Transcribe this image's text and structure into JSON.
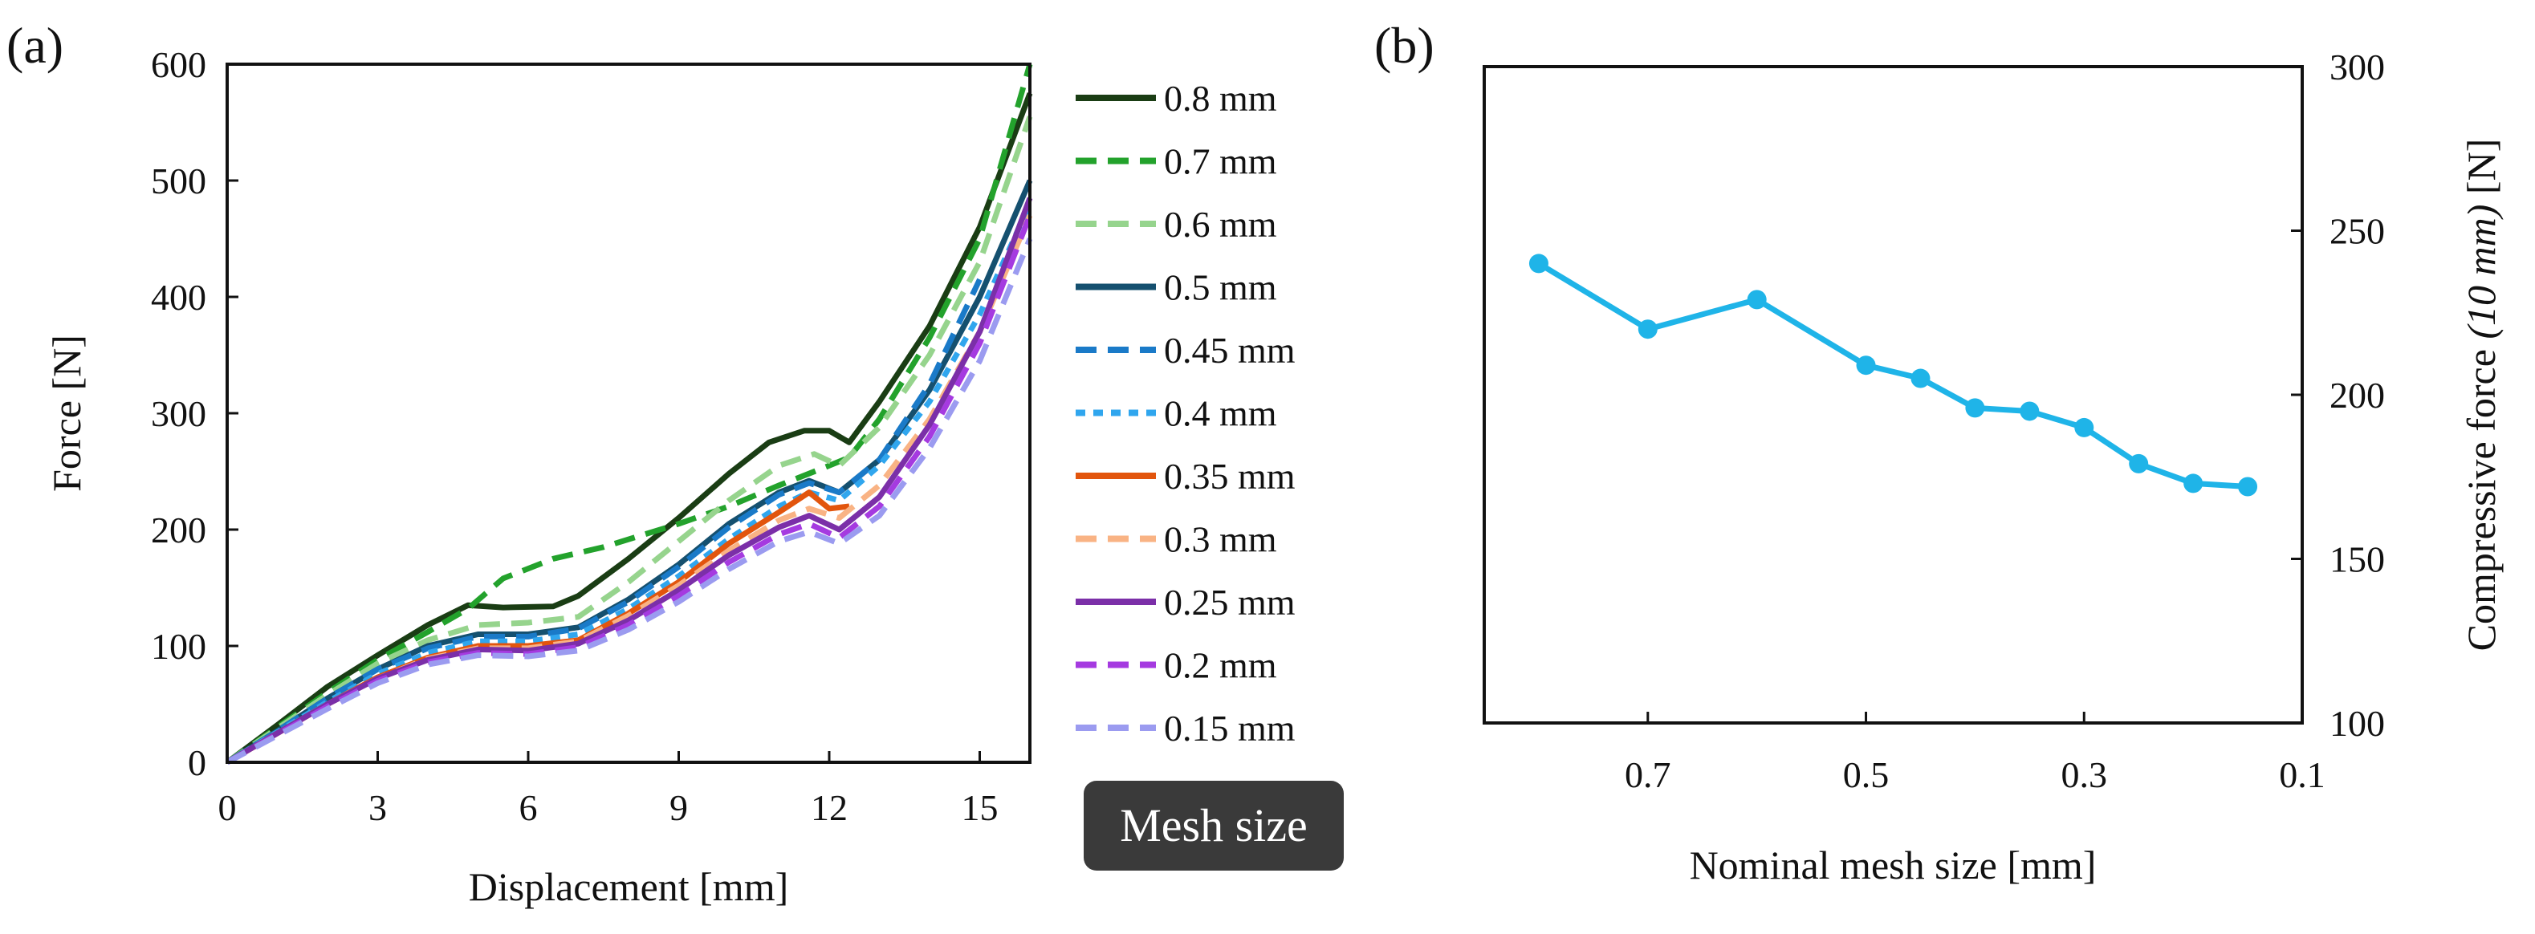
{
  "panels": {
    "a": {
      "label": "(a)"
    },
    "b": {
      "label": "(b)"
    }
  },
  "legend": {
    "badge": "Mesh size"
  },
  "chart_data": [
    {
      "type": "line",
      "title": "",
      "xlabel": "Displacement [mm]",
      "ylabel": "Force [N]",
      "xlim": [
        0,
        16
      ],
      "ylim": [
        0,
        600
      ],
      "xticks": [
        "0",
        "3",
        "6",
        "9",
        "12",
        "15"
      ],
      "yticks": [
        "0",
        "100",
        "200",
        "300",
        "400",
        "500",
        "600"
      ],
      "grid": false,
      "legend_position": "right",
      "series": [
        {
          "name": "0.8  mm",
          "color": "#1a3d14",
          "dash": "solid",
          "x": [
            0,
            1,
            2,
            3,
            4,
            4.8,
            5.5,
            6.5,
            7,
            8,
            9,
            10,
            10.8,
            11.5,
            12,
            12.4,
            13,
            14,
            15,
            16
          ],
          "y": [
            0,
            32,
            65,
            92,
            118,
            135,
            133,
            134,
            143,
            175,
            210,
            248,
            275,
            285,
            285,
            275,
            310,
            375,
            460,
            575
          ]
        },
        {
          "name": "0.7 mm",
          "color": "#23a22c",
          "dash": "dash",
          "x": [
            0,
            1,
            2,
            3,
            4,
            4.8,
            5.5,
            6.5,
            7.5,
            9,
            10,
            11,
            12,
            12.4,
            13,
            14,
            15,
            16
          ],
          "y": [
            0,
            30,
            60,
            88,
            112,
            132,
            158,
            175,
            185,
            205,
            220,
            238,
            255,
            262,
            295,
            365,
            450,
            600
          ]
        },
        {
          "name": "0.6 mm",
          "color": "#96d48d",
          "dash": "dash",
          "x": [
            0,
            1,
            2,
            3,
            4,
            5,
            6,
            7,
            8,
            9,
            10,
            11,
            11.7,
            12.2,
            13,
            14,
            15,
            16
          ],
          "y": [
            0,
            29,
            58,
            85,
            105,
            118,
            120,
            125,
            155,
            190,
            225,
            255,
            265,
            255,
            288,
            350,
            430,
            555
          ]
        },
        {
          "name": "0.5 mm",
          "color": "#15506f",
          "dash": "solid",
          "x": [
            0,
            1,
            2,
            3,
            4,
            5,
            6,
            7,
            8,
            9,
            10,
            11,
            11.6,
            12.2,
            13,
            14,
            15,
            16
          ],
          "y": [
            0,
            27,
            55,
            80,
            100,
            110,
            110,
            116,
            140,
            170,
            205,
            232,
            242,
            232,
            260,
            320,
            400,
            500
          ]
        },
        {
          "name": "0.45 mm",
          "color": "#1a7ac8",
          "dash": "dash",
          "x": [
            0,
            1,
            2,
            3,
            4,
            5,
            6,
            7,
            8,
            9,
            10,
            11,
            11.6,
            12.2,
            13,
            14,
            15
          ],
          "y": [
            0,
            27,
            55,
            80,
            98,
            108,
            108,
            115,
            138,
            168,
            202,
            230,
            240,
            232,
            260,
            325,
            415
          ]
        },
        {
          "name": "0.4 mm",
          "color": "#30a6ee",
          "dash": "dot",
          "x": [
            0,
            1,
            2,
            3,
            4,
            5,
            6,
            7,
            8,
            9,
            10,
            11,
            11.6,
            12.2,
            13,
            14,
            15,
            16
          ],
          "y": [
            0,
            26,
            52,
            76,
            94,
            104,
            104,
            110,
            132,
            160,
            192,
            220,
            232,
            225,
            255,
            310,
            385,
            480
          ]
        },
        {
          "name": "0.35 mm",
          "color": "#e2550d",
          "dash": "solid",
          "x": [
            0,
            1,
            2,
            3,
            4,
            5,
            6,
            7,
            8,
            9,
            10,
            11,
            11.6,
            12,
            12.4
          ],
          "y": [
            0,
            25,
            50,
            73,
            90,
            100,
            100,
            105,
            128,
            155,
            188,
            215,
            232,
            218,
            220
          ]
        },
        {
          "name": "0.3 mm",
          "color": "#f9b384",
          "dash": "dash",
          "x": [
            0,
            1,
            2,
            3,
            4,
            5,
            6,
            7,
            8,
            9,
            10,
            11,
            11.6,
            12.2,
            13,
            14,
            15,
            16
          ],
          "y": [
            0,
            25,
            50,
            72,
            89,
            98,
            98,
            104,
            126,
            152,
            182,
            208,
            218,
            210,
            238,
            295,
            370,
            470
          ]
        },
        {
          "name": "0.25 mm",
          "color": "#7b2fa8",
          "dash": "solid",
          "x": [
            0,
            1,
            2,
            3,
            4,
            5,
            6,
            7,
            8,
            9,
            10,
            11,
            11.6,
            12.2,
            13,
            14,
            15,
            16
          ],
          "y": [
            0,
            25,
            50,
            72,
            88,
            97,
            96,
            102,
            122,
            148,
            178,
            202,
            212,
            200,
            228,
            290,
            370,
            485
          ]
        },
        {
          "name": "0.2 mm",
          "color": "#a53ae0",
          "dash": "dash",
          "x": [
            0,
            1,
            2,
            3,
            4,
            5,
            6,
            7,
            8,
            9,
            10,
            11,
            11.6,
            12.2,
            13,
            14,
            15,
            16
          ],
          "y": [
            0,
            24,
            48,
            70,
            86,
            94,
            93,
            99,
            118,
            143,
            172,
            196,
            205,
            193,
            220,
            280,
            360,
            470
          ]
        },
        {
          "name": "0.15 mm",
          "color": "#9b9bf0",
          "dash": "dash",
          "x": [
            0,
            1,
            2,
            3,
            4,
            5,
            6,
            7,
            8,
            9,
            10,
            11,
            11.6,
            12.2,
            13,
            14,
            15,
            16
          ],
          "y": [
            0,
            23,
            46,
            68,
            84,
            92,
            91,
            96,
            114,
            138,
            166,
            190,
            198,
            188,
            212,
            270,
            345,
            450
          ]
        }
      ]
    },
    {
      "type": "line",
      "title": "",
      "xlabel": "Nominal mesh size [mm]",
      "ylabel": "Compressive force ",
      "ylabel_italic": "(10 mm)",
      "ylabel_suffix": " [N]",
      "xlim": [
        0.85,
        0.1
      ],
      "ylim": [
        100,
        300
      ],
      "xticks": [
        "0.7",
        "0.5",
        "0.3",
        "0.1"
      ],
      "yticks": [
        "100",
        "150",
        "200",
        "250",
        "300"
      ],
      "y_axis_side": "right",
      "grid": false,
      "series": [
        {
          "name": "Compressive force",
          "color": "#1fb4e8",
          "x": [
            0.8,
            0.7,
            0.6,
            0.5,
            0.45,
            0.4,
            0.35,
            0.3,
            0.25,
            0.2,
            0.15
          ],
          "y": [
            240,
            220,
            229,
            209,
            205,
            196,
            195,
            190,
            179,
            173,
            172
          ]
        }
      ]
    }
  ]
}
